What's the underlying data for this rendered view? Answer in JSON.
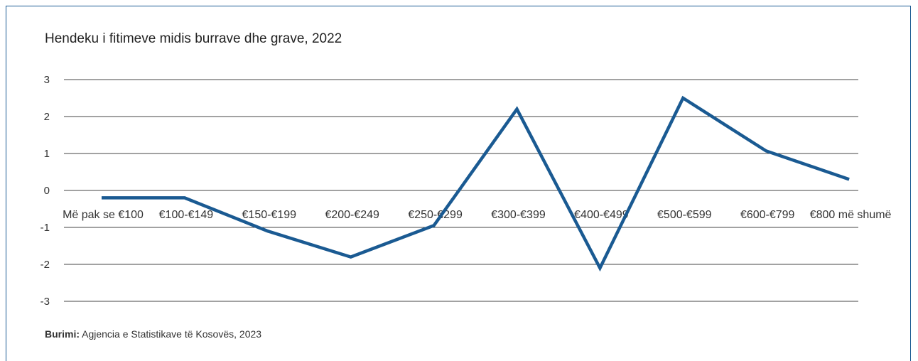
{
  "chart_data": {
    "type": "line",
    "title": "Hendeku i fitimeve midis burrave dhe grave, 2022",
    "categories": [
      "Më pak se €100",
      "€100-€149",
      "€150-€199",
      "€200-€249",
      "€250-€299",
      "€300-€399",
      "€400-€499",
      "€500-€599",
      "€600-€799",
      "€800 më shumë"
    ],
    "series": [
      {
        "values": [
          -0.2,
          -0.2,
          -1.1,
          -1.8,
          -0.95,
          2.2,
          -2.1,
          2.5,
          1.07,
          0.3
        ]
      }
    ],
    "ylim": [
      -3,
      3
    ],
    "yticks": [
      3,
      2,
      1,
      0,
      -1,
      -2,
      -3
    ],
    "grid": true,
    "legend": "none",
    "colors": {
      "line": "#1a5a92",
      "grid": "#444444",
      "frame": "#1a5a92"
    }
  },
  "source": {
    "label": "Burimi:",
    "text": " Agjencia e Statistikave të Kosovës, 2023"
  }
}
